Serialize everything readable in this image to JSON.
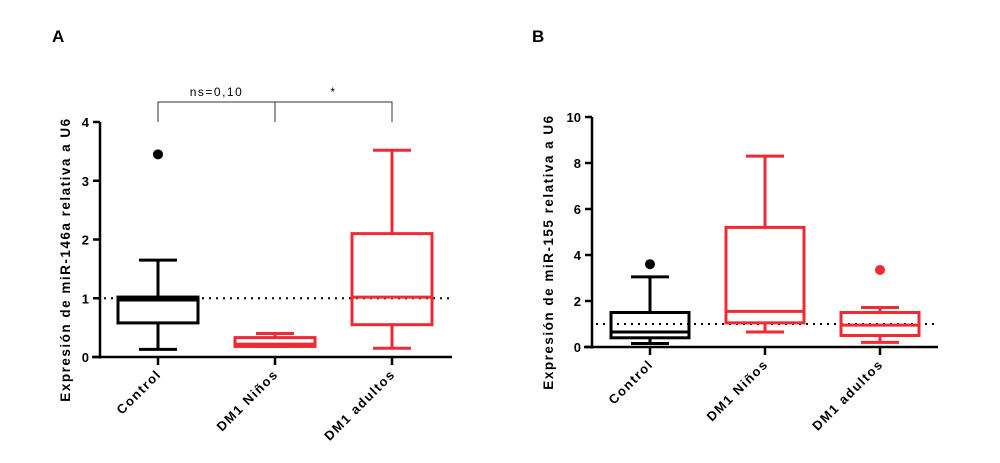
{
  "chart_data": [
    {
      "panel": "A",
      "type": "box",
      "ylabel": "Expresión de miR-146a relativa a U6",
      "ylim": [
        0,
        4
      ],
      "yticks": [
        "0",
        "1",
        "2",
        "3",
        "4"
      ],
      "categories": [
        "Control",
        "DM1 Niños",
        "DM1 adultos"
      ],
      "colors": [
        "#000000",
        "#ee2a35",
        "#ee2a35"
      ],
      "boxes": [
        {
          "min": 0.13,
          "q1": 0.58,
          "median": 0.97,
          "q3": 1.02,
          "max": 1.65,
          "outliers": [
            3.45
          ]
        },
        {
          "min": 0.18,
          "q1": 0.18,
          "median": 0.22,
          "q3": 0.33,
          "max": 0.4,
          "outliers": []
        },
        {
          "min": 0.15,
          "q1": 0.55,
          "median": 1.02,
          "q3": 2.1,
          "max": 3.52,
          "outliers": []
        }
      ],
      "reference_line": 1,
      "annotations": [
        {
          "from": 0,
          "to": 1,
          "text": "ns=0,10"
        },
        {
          "from": 1,
          "to": 2,
          "text": "*"
        }
      ]
    },
    {
      "panel": "B",
      "type": "box",
      "ylabel": "Expresión de miR-155 relativa a U6",
      "ylim": [
        0,
        10
      ],
      "yticks": [
        "0",
        "2",
        "4",
        "6",
        "8",
        "10"
      ],
      "categories": [
        "Control",
        "DM1 Niños",
        "DM1 adultos"
      ],
      "colors": [
        "#000000",
        "#ee2a35",
        "#ee2a35"
      ],
      "boxes": [
        {
          "min": 0.15,
          "q1": 0.4,
          "median": 0.65,
          "q3": 1.5,
          "max": 3.05,
          "outliers": [
            3.6
          ]
        },
        {
          "min": 0.65,
          "q1": 1.05,
          "median": 1.55,
          "q3": 5.2,
          "max": 8.3,
          "outliers": []
        },
        {
          "min": 0.2,
          "q1": 0.5,
          "median": 0.95,
          "q3": 1.5,
          "max": 1.72,
          "outliers": [
            3.35
          ]
        }
      ],
      "reference_line": 1,
      "annotations": []
    }
  ]
}
